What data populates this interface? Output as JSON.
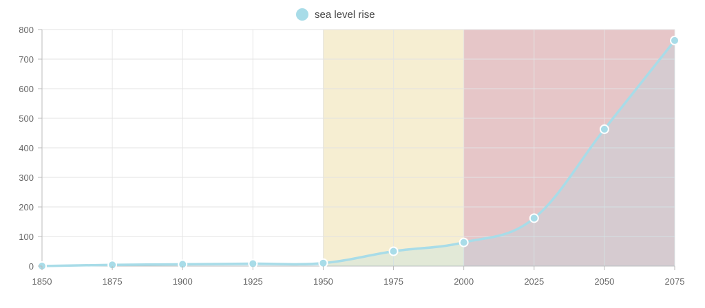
{
  "chart_data": {
    "type": "line",
    "title": "",
    "xlabel": "",
    "ylabel": "",
    "x": [
      1850,
      1875,
      1900,
      1925,
      1950,
      1975,
      2000,
      2025,
      2050,
      2075
    ],
    "series": [
      {
        "name": "sea level rise",
        "values": [
          0,
          4,
          6,
          8,
          10,
          50,
          80,
          162,
          463,
          763
        ],
        "color": "#a8dce8",
        "point_fill": "#a8dce8",
        "point_stroke": "#ffffff"
      }
    ],
    "xlim": [
      1850,
      2075
    ],
    "ylim": [
      0,
      800
    ],
    "x_ticks": [
      "1850",
      "1875",
      "1900",
      "1925",
      "1950",
      "1975",
      "2000",
      "2025",
      "2050",
      "2075"
    ],
    "y_ticks": [
      "0",
      "100",
      "200",
      "300",
      "400",
      "500",
      "600",
      "700",
      "800"
    ],
    "grid": true,
    "legend": "top-center",
    "bands": [
      {
        "from": 1950,
        "to": 2000,
        "color": "#f6eed2"
      },
      {
        "from": 2000,
        "to": 2075,
        "color": "#e6c6c8"
      }
    ],
    "colors": {
      "grid": "#e3e3e3",
      "axis": "#bbbbbb",
      "area_fill": "rgba(168, 220, 232, 0.25)"
    }
  }
}
